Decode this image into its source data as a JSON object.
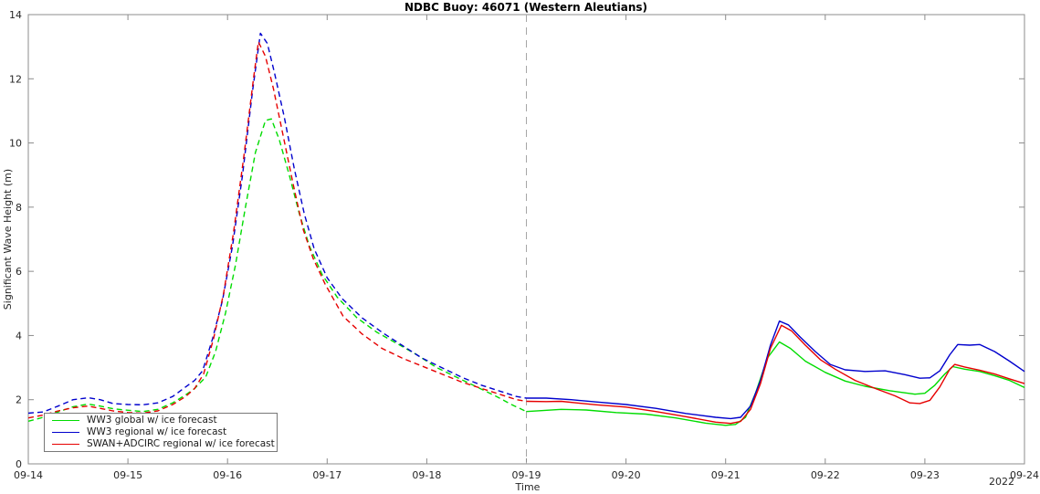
{
  "chart_data": {
    "type": "line",
    "title": "NDBC Buoy: 46071 (Western Aleutians)",
    "xlabel": "Time",
    "x_year_label": "2022",
    "ylabel": "Significant Wave Height (m)",
    "ylim": [
      0,
      14
    ],
    "yticks": [
      0,
      2,
      4,
      6,
      8,
      10,
      12,
      14
    ],
    "x_days_range": [
      0,
      10
    ],
    "xticks_days": [
      0,
      1,
      2,
      3,
      4,
      5,
      6,
      7,
      8,
      9,
      10
    ],
    "xtick_labels": [
      "09-14",
      "09-15",
      "09-16",
      "09-17",
      "09-18",
      "09-19",
      "09-20",
      "09-21",
      "09-22",
      "09-23",
      "09-24"
    ],
    "grid": false,
    "box": true,
    "axis_color": "#8c8c8c",
    "text_color": "#262626",
    "legend_position": "lower-left",
    "line_style": {
      "before_divider": "dashed",
      "after_divider": "solid"
    },
    "forecast_divider": {
      "day": 5,
      "at_label": "09-19",
      "color": "#a6a6a6",
      "style": "dashed"
    },
    "time_axis_note": "t = days after 09-14 00:00 (2022); values in meters",
    "series": [
      {
        "id": "ww3-global",
        "name": "WW3 global w/ ice forecast",
        "color": "#00dc00",
        "points": [
          [
            0,
            1.33
          ],
          [
            0.15,
            1.45
          ],
          [
            0.3,
            1.62
          ],
          [
            0.45,
            1.78
          ],
          [
            0.6,
            1.86
          ],
          [
            0.72,
            1.8
          ],
          [
            0.85,
            1.72
          ],
          [
            1,
            1.67
          ],
          [
            1.15,
            1.63
          ],
          [
            1.3,
            1.7
          ],
          [
            1.45,
            1.9
          ],
          [
            1.58,
            2.15
          ],
          [
            1.67,
            2.35
          ],
          [
            1.78,
            2.7
          ],
          [
            1.88,
            3.5
          ],
          [
            1.98,
            4.7
          ],
          [
            2.08,
            6.2
          ],
          [
            2.18,
            8
          ],
          [
            2.28,
            9.7
          ],
          [
            2.38,
            10.7
          ],
          [
            2.44,
            10.75
          ],
          [
            2.52,
            10.1
          ],
          [
            2.62,
            9
          ],
          [
            2.72,
            7.8
          ],
          [
            2.82,
            6.8
          ],
          [
            2.95,
            5.9
          ],
          [
            3.1,
            5.2
          ],
          [
            3.3,
            4.55
          ],
          [
            3.5,
            4.1
          ],
          [
            3.7,
            3.75
          ],
          [
            3.9,
            3.4
          ],
          [
            4.1,
            3
          ],
          [
            4.3,
            2.7
          ],
          [
            4.5,
            2.4
          ],
          [
            4.7,
            2.1
          ],
          [
            4.85,
            1.85
          ],
          [
            5,
            1.63
          ],
          [
            5.15,
            1.66
          ],
          [
            5.35,
            1.7
          ],
          [
            5.6,
            1.68
          ],
          [
            5.9,
            1.6
          ],
          [
            6.2,
            1.55
          ],
          [
            6.5,
            1.43
          ],
          [
            6.8,
            1.27
          ],
          [
            7,
            1.2
          ],
          [
            7.1,
            1.23
          ],
          [
            7.2,
            1.45
          ],
          [
            7.3,
            2.2
          ],
          [
            7.42,
            3.3
          ],
          [
            7.54,
            3.8
          ],
          [
            7.65,
            3.6
          ],
          [
            7.8,
            3.2
          ],
          [
            8,
            2.85
          ],
          [
            8.2,
            2.58
          ],
          [
            8.4,
            2.42
          ],
          [
            8.65,
            2.28
          ],
          [
            8.9,
            2.17
          ],
          [
            9,
            2.2
          ],
          [
            9.1,
            2.45
          ],
          [
            9.2,
            2.8
          ],
          [
            9.28,
            3.03
          ],
          [
            9.4,
            2.95
          ],
          [
            9.55,
            2.88
          ],
          [
            9.7,
            2.75
          ],
          [
            9.85,
            2.6
          ],
          [
            10,
            2.38
          ]
        ]
      },
      {
        "id": "ww3-regional",
        "name": "WW3 regional w/ ice forecast",
        "color": "#0000cd",
        "points": [
          [
            0,
            1.58
          ],
          [
            0.15,
            1.62
          ],
          [
            0.3,
            1.8
          ],
          [
            0.45,
            2
          ],
          [
            0.6,
            2.06
          ],
          [
            0.72,
            2
          ],
          [
            0.85,
            1.88
          ],
          [
            1,
            1.85
          ],
          [
            1.15,
            1.84
          ],
          [
            1.3,
            1.9
          ],
          [
            1.45,
            2.1
          ],
          [
            1.58,
            2.4
          ],
          [
            1.67,
            2.6
          ],
          [
            1.75,
            2.9
          ],
          [
            1.85,
            3.9
          ],
          [
            1.95,
            5.1
          ],
          [
            2.05,
            6.8
          ],
          [
            2.15,
            9
          ],
          [
            2.25,
            11.6
          ],
          [
            2.33,
            13.42
          ],
          [
            2.4,
            13.1
          ],
          [
            2.47,
            12.2
          ],
          [
            2.57,
            10.8
          ],
          [
            2.67,
            9.2
          ],
          [
            2.77,
            7.8
          ],
          [
            2.87,
            6.7
          ],
          [
            3,
            5.8
          ],
          [
            3.15,
            5.15
          ],
          [
            3.35,
            4.55
          ],
          [
            3.55,
            4.1
          ],
          [
            3.75,
            3.7
          ],
          [
            3.95,
            3.3
          ],
          [
            4.15,
            3
          ],
          [
            4.35,
            2.7
          ],
          [
            4.55,
            2.45
          ],
          [
            4.75,
            2.25
          ],
          [
            4.9,
            2.1
          ],
          [
            5,
            2.05
          ],
          [
            5.2,
            2.05
          ],
          [
            5.45,
            2
          ],
          [
            5.7,
            1.93
          ],
          [
            6,
            1.85
          ],
          [
            6.3,
            1.73
          ],
          [
            6.6,
            1.57
          ],
          [
            6.9,
            1.45
          ],
          [
            7.05,
            1.41
          ],
          [
            7.15,
            1.45
          ],
          [
            7.25,
            1.8
          ],
          [
            7.35,
            2.6
          ],
          [
            7.45,
            3.7
          ],
          [
            7.54,
            4.45
          ],
          [
            7.63,
            4.33
          ],
          [
            7.75,
            3.95
          ],
          [
            7.9,
            3.5
          ],
          [
            8.05,
            3.1
          ],
          [
            8.2,
            2.93
          ],
          [
            8.4,
            2.88
          ],
          [
            8.6,
            2.9
          ],
          [
            8.8,
            2.78
          ],
          [
            8.95,
            2.67
          ],
          [
            9.05,
            2.68
          ],
          [
            9.15,
            2.9
          ],
          [
            9.25,
            3.4
          ],
          [
            9.33,
            3.72
          ],
          [
            9.45,
            3.7
          ],
          [
            9.55,
            3.72
          ],
          [
            9.7,
            3.5
          ],
          [
            9.85,
            3.2
          ],
          [
            10,
            2.88
          ]
        ]
      },
      {
        "id": "swan-adcirc-regional",
        "name": "SWAN+ADCIRC regional w/ ice forecast",
        "color": "#e60000",
        "points": [
          [
            0,
            1.43
          ],
          [
            0.15,
            1.52
          ],
          [
            0.3,
            1.65
          ],
          [
            0.45,
            1.75
          ],
          [
            0.6,
            1.8
          ],
          [
            0.72,
            1.73
          ],
          [
            0.85,
            1.65
          ],
          [
            1,
            1.6
          ],
          [
            1.15,
            1.58
          ],
          [
            1.3,
            1.65
          ],
          [
            1.45,
            1.85
          ],
          [
            1.58,
            2.1
          ],
          [
            1.67,
            2.35
          ],
          [
            1.76,
            2.8
          ],
          [
            1.86,
            3.9
          ],
          [
            1.96,
            5.3
          ],
          [
            2.06,
            7.2
          ],
          [
            2.16,
            9.5
          ],
          [
            2.26,
            12
          ],
          [
            2.31,
            13.15
          ],
          [
            2.38,
            12.7
          ],
          [
            2.46,
            11.7
          ],
          [
            2.56,
            10.2
          ],
          [
            2.66,
            8.7
          ],
          [
            2.76,
            7.3
          ],
          [
            2.86,
            6.4
          ],
          [
            2.98,
            5.6
          ],
          [
            3.16,
            4.6
          ],
          [
            3.35,
            4.05
          ],
          [
            3.55,
            3.6
          ],
          [
            3.75,
            3.3
          ],
          [
            3.95,
            3.05
          ],
          [
            4.15,
            2.8
          ],
          [
            4.35,
            2.55
          ],
          [
            4.55,
            2.35
          ],
          [
            4.75,
            2.15
          ],
          [
            4.9,
            2
          ],
          [
            5,
            1.95
          ],
          [
            5.2,
            1.94
          ],
          [
            5.35,
            1.95
          ],
          [
            5.5,
            1.9
          ],
          [
            5.7,
            1.84
          ],
          [
            6,
            1.77
          ],
          [
            6.3,
            1.63
          ],
          [
            6.6,
            1.47
          ],
          [
            6.9,
            1.3
          ],
          [
            7.05,
            1.26
          ],
          [
            7.15,
            1.32
          ],
          [
            7.25,
            1.7
          ],
          [
            7.35,
            2.5
          ],
          [
            7.45,
            3.6
          ],
          [
            7.56,
            4.32
          ],
          [
            7.66,
            4.15
          ],
          [
            7.8,
            3.7
          ],
          [
            7.95,
            3.25
          ],
          [
            8.1,
            2.95
          ],
          [
            8.3,
            2.6
          ],
          [
            8.5,
            2.35
          ],
          [
            8.7,
            2.12
          ],
          [
            8.85,
            1.9
          ],
          [
            8.95,
            1.88
          ],
          [
            9.05,
            1.98
          ],
          [
            9.15,
            2.4
          ],
          [
            9.25,
            2.95
          ],
          [
            9.3,
            3.1
          ],
          [
            9.4,
            3.02
          ],
          [
            9.55,
            2.92
          ],
          [
            9.7,
            2.8
          ],
          [
            9.85,
            2.65
          ],
          [
            10,
            2.5
          ]
        ]
      }
    ]
  }
}
